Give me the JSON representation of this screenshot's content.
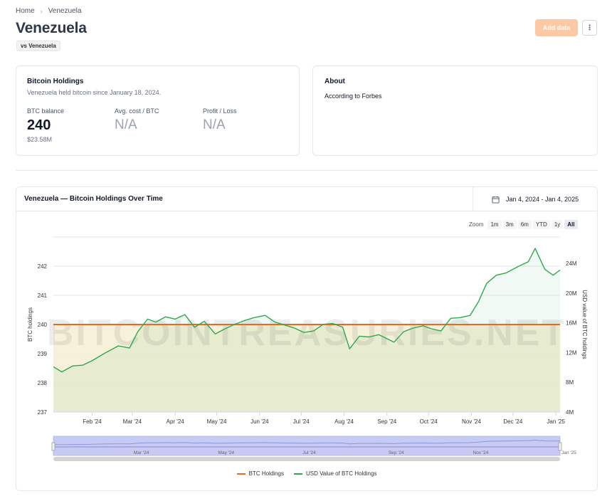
{
  "breadcrumb": {
    "home": "Home",
    "current": "Venezuela"
  },
  "page": {
    "title": "Venezuela",
    "chip": "vs Venezuela"
  },
  "actions": {
    "add_data": "Add data",
    "more": "⋮"
  },
  "holdings": {
    "title": "Bitcoin Holdings",
    "subtitle": "Venezuela held bitcoin since January 18, 2024.",
    "btc_balance_label": "BTC balance",
    "btc_balance": "240",
    "usd_value": "$23.58M",
    "avg_cost_label": "Avg. cost / BTC",
    "avg_cost": "N/A",
    "profit_label": "Profit / Loss",
    "profit": "N/A"
  },
  "about": {
    "title": "About",
    "text": "According to Forbes"
  },
  "chart_card": {
    "title": "Venezuela — Bitcoin Holdings Over Time",
    "date_range": "Jan 4, 2024 - Jan 4, 2025",
    "zoom_label": "Zoom",
    "zoom_options": [
      "1m",
      "3m",
      "6m",
      "YTD",
      "1y",
      "All"
    ],
    "zoom_active": "All",
    "watermark": "BITCOINTREASURIES.NET"
  },
  "colors": {
    "btc_line": "#e8691f",
    "usd_line": "#2fa84f",
    "accent": "#fbc9a4"
  },
  "chart_data": {
    "type": "line",
    "xlabel": "",
    "ylabel": "BTC holdings",
    "ylabel_right": "USD value of BTC holdings",
    "x_ticks": [
      "Feb '24",
      "Mar '24",
      "Apr '24",
      "May '24",
      "Jun '24",
      "Jul '24",
      "Aug '24",
      "Sep '24",
      "Oct '24",
      "Nov '24",
      "Dec '24",
      "Jan '25"
    ],
    "navigator_ticks": [
      "Mar '24",
      "May '24",
      "Jul '24",
      "Sep '24",
      "Nov '24",
      "Jan '25"
    ],
    "y_left_ticks": [
      "237",
      "238",
      "239",
      "240",
      "241",
      "242"
    ],
    "y_right_ticks": [
      "4M",
      "8M",
      "12M",
      "16M",
      "20M",
      "24M"
    ],
    "ylim_left": [
      237,
      243
    ],
    "ylim_right": [
      4,
      24
    ],
    "grid": true,
    "legend_position": "bottom",
    "series": [
      {
        "name": "BTC Holdings",
        "axis": "left",
        "x": [
          "2024-01-04",
          "2025-01-04"
        ],
        "values": [
          240,
          240
        ]
      },
      {
        "name": "USD Value of BTC Holdings",
        "axis": "right",
        "unit": "M",
        "x": [
          "2024-01-04",
          "2024-01-10",
          "2024-01-18",
          "2024-01-25",
          "2024-02-01",
          "2024-02-10",
          "2024-02-20",
          "2024-02-28",
          "2024-03-05",
          "2024-03-12",
          "2024-03-18",
          "2024-03-25",
          "2024-04-01",
          "2024-04-08",
          "2024-04-15",
          "2024-04-22",
          "2024-04-30",
          "2024-05-07",
          "2024-05-14",
          "2024-05-21",
          "2024-05-28",
          "2024-06-05",
          "2024-06-12",
          "2024-06-19",
          "2024-06-26",
          "2024-07-03",
          "2024-07-10",
          "2024-07-17",
          "2024-07-24",
          "2024-07-31",
          "2024-08-05",
          "2024-08-12",
          "2024-08-19",
          "2024-08-26",
          "2024-09-06",
          "2024-09-13",
          "2024-09-20",
          "2024-09-27",
          "2024-10-03",
          "2024-10-10",
          "2024-10-17",
          "2024-10-24",
          "2024-10-31",
          "2024-11-06",
          "2024-11-12",
          "2024-11-19",
          "2024-11-26",
          "2024-12-05",
          "2024-12-12",
          "2024-12-17",
          "2024-12-24",
          "2024-12-30",
          "2025-01-04"
        ],
        "values": [
          10.1,
          9.4,
          10.2,
          10.3,
          10.9,
          11.9,
          12.9,
          12.6,
          14.8,
          16.5,
          16.1,
          16.8,
          16.5,
          17.1,
          15.4,
          16.2,
          14.5,
          15.2,
          15.8,
          16.3,
          16.7,
          17.0,
          16.1,
          15.7,
          15.3,
          14.7,
          14.9,
          15.8,
          15.9,
          15.4,
          12.5,
          14.2,
          14.1,
          14.4,
          13.4,
          14.8,
          15.3,
          15.6,
          15.2,
          14.9,
          16.6,
          16.7,
          17.0,
          18.8,
          21.3,
          22.4,
          22.7,
          23.6,
          24.2,
          26.0,
          23.2,
          22.4,
          23.1
        ]
      }
    ]
  }
}
